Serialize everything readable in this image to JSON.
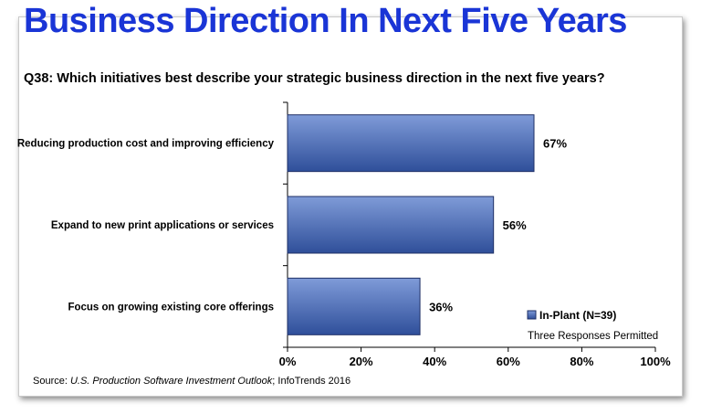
{
  "title": "Business Direction In Next Five Years",
  "subtitle": "Q38: Which initiatives best describe your strategic business direction in the next five years?",
  "source": {
    "prefix": "Source: ",
    "publication": "U.S. Production Software Investment Outlook",
    "suffix": "; InfoTrends 2016"
  },
  "colors": {
    "title": "#1a35d6",
    "bar_top": "#7f9bd8",
    "bar_bottom": "#2f4f9a"
  },
  "chart_data": {
    "type": "bar",
    "orientation": "horizontal",
    "categories": [
      "Reducing production cost and improving efficiency",
      "Expand to new print applications or services",
      "Focus on growing existing core offerings"
    ],
    "series": [
      {
        "name": "In-Plant (N=39)",
        "values": [
          67,
          56,
          36
        ]
      }
    ],
    "data_labels": [
      "67%",
      "56%",
      "36%"
    ],
    "x_ticks": [
      "0%",
      "20%",
      "40%",
      "60%",
      "80%",
      "100%"
    ],
    "xlim": [
      0,
      100
    ],
    "grid": false,
    "legend": {
      "position": "bottom-right",
      "note": "Three Responses Permitted"
    }
  }
}
